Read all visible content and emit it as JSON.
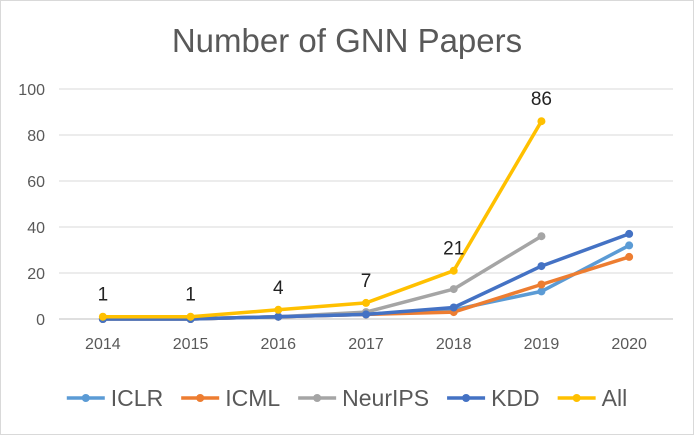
{
  "chart_data": {
    "type": "line",
    "title": "Number of GNN Papers",
    "xlabel": "",
    "ylabel": "",
    "x": [
      "2014",
      "2015",
      "2016",
      "2017",
      "2018",
      "2019",
      "2020"
    ],
    "y_ticks": [
      "0",
      "20",
      "40",
      "60",
      "80",
      "100"
    ],
    "ylim": [
      0,
      100
    ],
    "grid": true,
    "legend_position": "bottom",
    "series": [
      {
        "name": "ICLR",
        "color": "#5b9bd5",
        "values": [
          0,
          0,
          1,
          2,
          4,
          12,
          32
        ]
      },
      {
        "name": "ICML",
        "color": "#ed7d31",
        "values": [
          0,
          0,
          1,
          2,
          3,
          15,
          27
        ]
      },
      {
        "name": "NeurIPS",
        "color": "#a5a5a5",
        "values": [
          0,
          0,
          1,
          3,
          13,
          36,
          null
        ]
      },
      {
        "name": "KDD",
        "color": "#4472c4",
        "values": [
          0,
          0,
          1,
          2,
          5,
          23,
          37
        ]
      },
      {
        "name": "All",
        "color": "#ffc000",
        "values": [
          1,
          1,
          4,
          7,
          21,
          86,
          null
        ]
      }
    ],
    "data_labels": {
      "series": "All",
      "values": [
        "1",
        "1",
        "4",
        "7",
        "21",
        "86"
      ]
    }
  }
}
